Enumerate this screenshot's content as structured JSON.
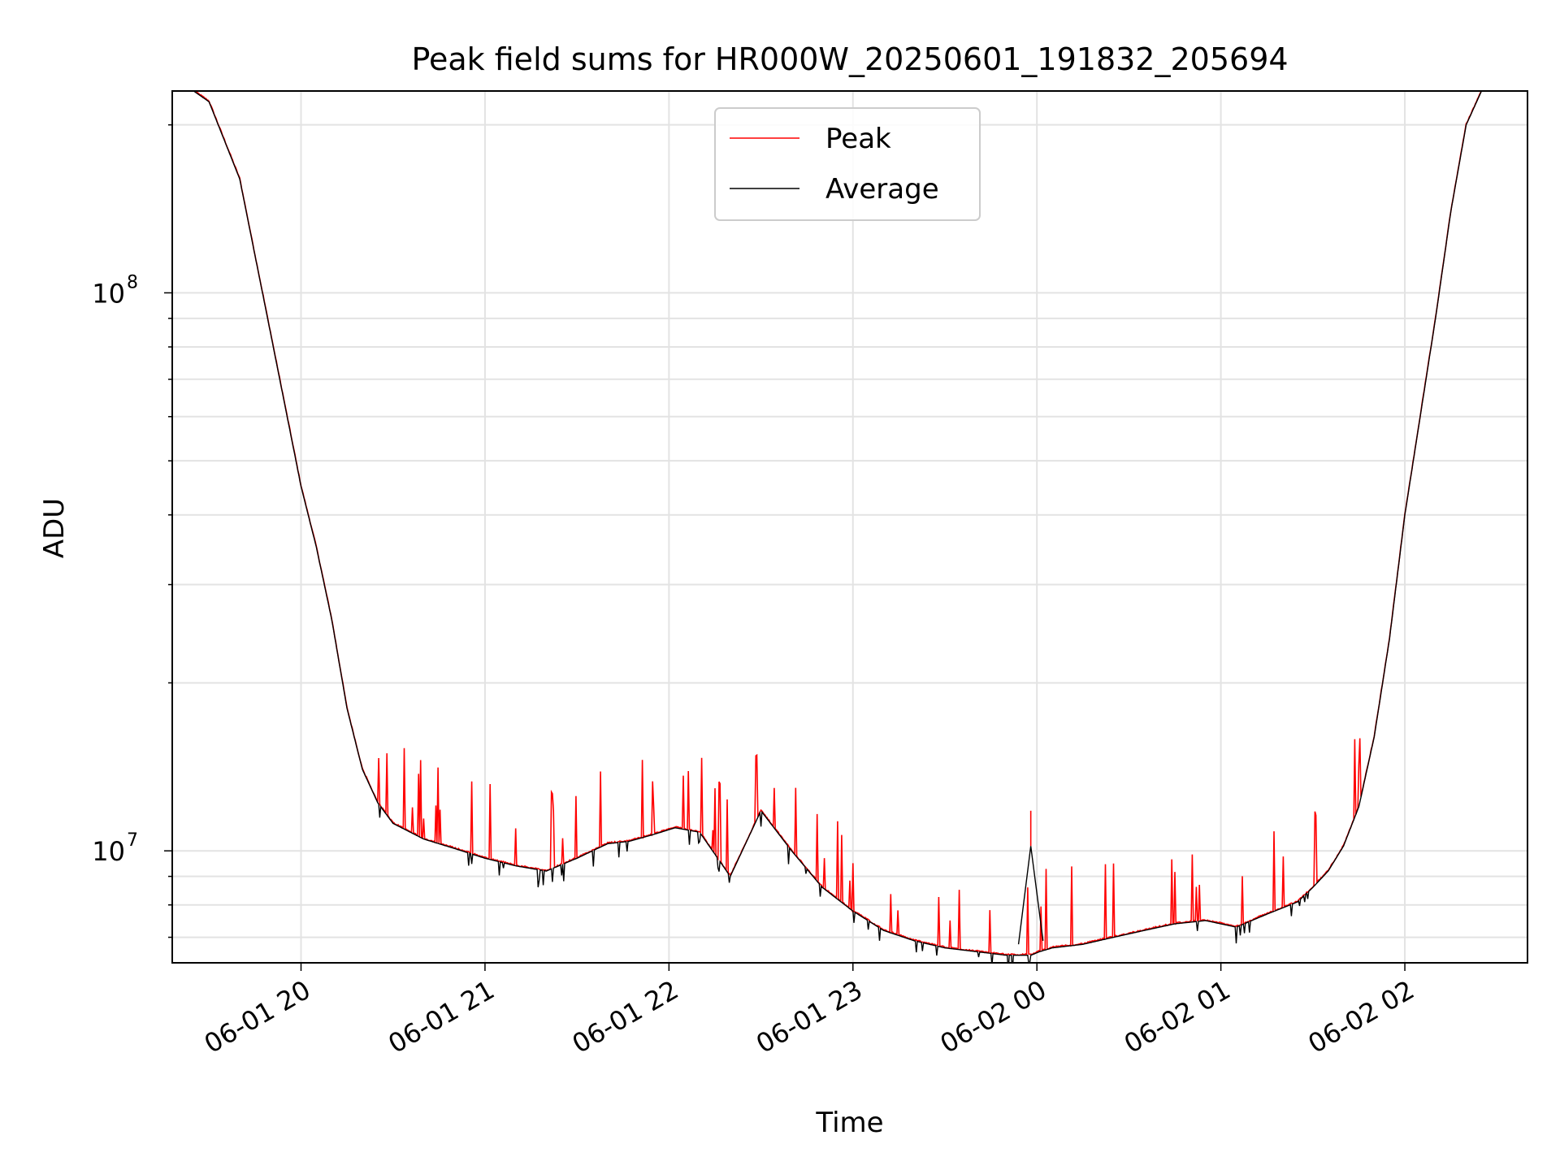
{
  "chart_data": {
    "type": "line",
    "title": "Peak field sums for HR000W_20250601_191832_205694",
    "xlabel": "Time",
    "ylabel": "ADU",
    "yscale": "log",
    "ylim": [
      6300000,
      230000000
    ],
    "xlim": [
      "2025-06-01 19:18",
      "2025-06-02 02:40"
    ],
    "x_ticks": [
      "06-01 20",
      "06-01 21",
      "06-01 22",
      "06-01 23",
      "06-02 00",
      "06-02 01",
      "06-02 02"
    ],
    "y_ticks": [
      {
        "base": "10",
        "exp": "8"
      },
      {
        "base": "10",
        "exp": "7"
      }
    ],
    "grid": true,
    "legend_position": "upper-center",
    "series": [
      {
        "name": "Peak",
        "color": "#ff0000"
      },
      {
        "name": "Average",
        "color": "#000000"
      }
    ],
    "baseline": {
      "times": [
        "2025-06-01 19:25",
        "2025-06-01 19:30",
        "2025-06-01 19:40",
        "2025-06-01 19:50",
        "2025-06-01 20:00",
        "2025-06-01 20:05",
        "2025-06-01 20:10",
        "2025-06-01 20:15",
        "2025-06-01 20:20",
        "2025-06-01 20:25",
        "2025-06-01 20:30",
        "2025-06-01 20:40",
        "2025-06-01 20:50",
        "2025-06-01 21:00",
        "2025-06-01 21:10",
        "2025-06-01 21:20",
        "2025-06-01 21:30",
        "2025-06-01 21:40",
        "2025-06-01 21:47",
        "2025-06-01 21:55",
        "2025-06-01 22:02",
        "2025-06-01 22:10",
        "2025-06-01 22:20",
        "2025-06-01 22:30",
        "2025-06-01 22:40",
        "2025-06-01 22:50",
        "2025-06-01 23:00",
        "2025-06-01 23:10",
        "2025-06-01 23:20",
        "2025-06-01 23:30",
        "2025-06-01 23:40",
        "2025-06-01 23:50",
        "2025-06-01 23:55",
        "2025-06-01 23:58",
        "2025-06-02 00:01",
        "2025-06-02 00:05",
        "2025-06-02 00:15",
        "2025-06-02 00:25",
        "2025-06-02 00:35",
        "2025-06-02 00:45",
        "2025-06-02 00:55",
        "2025-06-02 01:05",
        "2025-06-02 01:15",
        "2025-06-02 01:25",
        "2025-06-02 01:30",
        "2025-06-02 01:35",
        "2025-06-02 01:40",
        "2025-06-02 01:45",
        "2025-06-02 01:50",
        "2025-06-02 01:55",
        "2025-06-02 02:00",
        "2025-06-02 02:05",
        "2025-06-02 02:10",
        "2025-06-02 02:15",
        "2025-06-02 02:20",
        "2025-06-02 02:25"
      ],
      "values": [
        230000000,
        220000000,
        160000000,
        85000000,
        45000000,
        35000000,
        26000000,
        18000000,
        14000000,
        12200000,
        11200000,
        10500000,
        10100000,
        9700000,
        9400000,
        9200000,
        9700000,
        10300000,
        10400000,
        10700000,
        11000000,
        10800000,
        9000000,
        11800000,
        10000000,
        8600000,
        7800000,
        7200000,
        6900000,
        6700000,
        6600000,
        6500000,
        6500000,
        6500000,
        6600000,
        6700000,
        6800000,
        7000000,
        7200000,
        7400000,
        7500000,
        7300000,
        7700000,
        8100000,
        8600000,
        9200000,
        10200000,
        12000000,
        16000000,
        24000000,
        40000000,
        60000000,
        90000000,
        140000000,
        200000000,
        230000000
      ]
    }
  }
}
